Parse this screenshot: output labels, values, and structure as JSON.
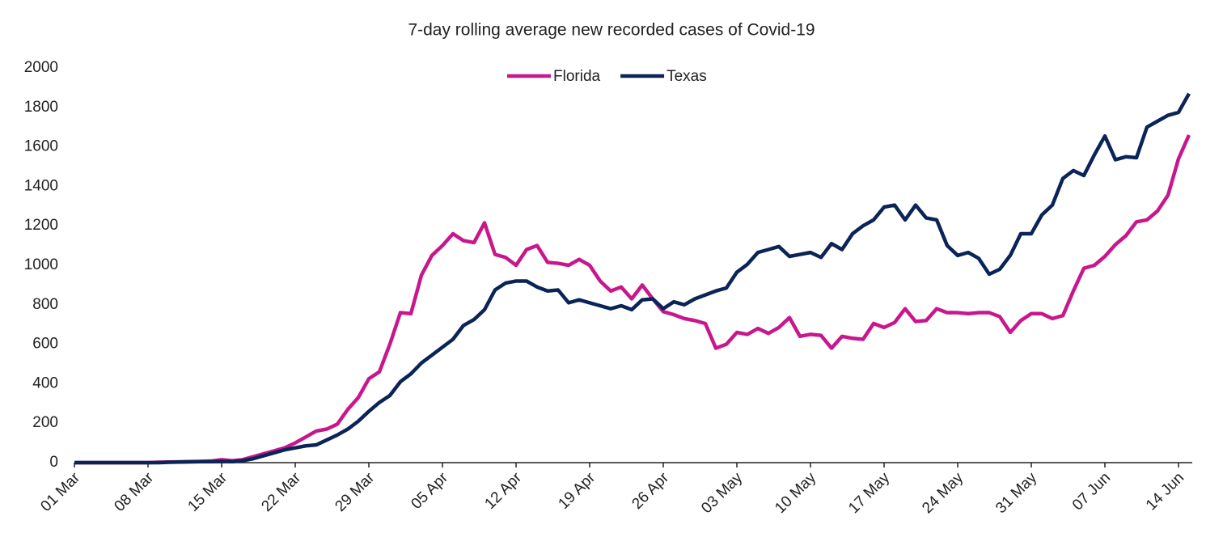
{
  "chart_data": {
    "type": "line",
    "title": "7-day rolling average new recorded cases of Covid-19",
    "categories": [
      "01 Mar",
      null,
      null,
      null,
      null,
      null,
      null,
      "08 Mar",
      null,
      null,
      null,
      null,
      null,
      null,
      "15 Mar",
      null,
      null,
      null,
      null,
      null,
      null,
      "22 Mar",
      null,
      null,
      null,
      null,
      null,
      null,
      "29 Mar",
      null,
      null,
      null,
      null,
      null,
      null,
      "05 Apr",
      null,
      null,
      null,
      null,
      null,
      null,
      "12 Apr",
      null,
      null,
      null,
      null,
      null,
      null,
      "19 Apr",
      null,
      null,
      null,
      null,
      null,
      null,
      "26 Apr",
      null,
      null,
      null,
      null,
      null,
      null,
      "03 May",
      null,
      null,
      null,
      null,
      null,
      null,
      "10 May",
      null,
      null,
      null,
      null,
      null,
      null,
      "17 May",
      null,
      null,
      null,
      null,
      null,
      null,
      "24 May",
      null,
      null,
      null,
      null,
      null,
      null,
      "31 May",
      null,
      null,
      null,
      null,
      null,
      null,
      "07 Jun",
      null,
      null,
      null,
      null,
      null,
      null,
      "14 Jun",
      null
    ],
    "series": [
      {
        "name": "Florida",
        "color": "#c8178c",
        "values": [
          0,
          0,
          0,
          0,
          0,
          0,
          0,
          0,
          2,
          3,
          4,
          5,
          6,
          8,
          15,
          10,
          15,
          30,
          45,
          60,
          75,
          100,
          130,
          160,
          170,
          195,
          270,
          330,
          425,
          460,
          600,
          760,
          755,
          950,
          1050,
          1100,
          1160,
          1125,
          1115,
          1215,
          1055,
          1040,
          1000,
          1080,
          1100,
          1015,
          1010,
          1000,
          1030,
          1000,
          920,
          870,
          890,
          830,
          900,
          830,
          765,
          750,
          730,
          720,
          705,
          580,
          600,
          660,
          650,
          680,
          655,
          685,
          735,
          640,
          650,
          645,
          580,
          640,
          630,
          625,
          705,
          685,
          710,
          780,
          715,
          720,
          780,
          760,
          760,
          755,
          760,
          760,
          740,
          660,
          720,
          755,
          755,
          730,
          745,
          870,
          985,
          1000,
          1045,
          1105,
          1150,
          1220,
          1230,
          1275,
          1355,
          1540,
          1660
        ]
      },
      {
        "name": "Texas",
        "color": "#0b2457",
        "values": [
          0,
          0,
          0,
          0,
          0,
          0,
          0,
          0,
          0,
          2,
          3,
          4,
          5,
          5,
          6,
          5,
          10,
          20,
          35,
          50,
          65,
          75,
          85,
          90,
          115,
          140,
          170,
          210,
          260,
          305,
          340,
          410,
          450,
          505,
          545,
          585,
          625,
          695,
          725,
          775,
          875,
          910,
          920,
          920,
          890,
          870,
          875,
          810,
          825,
          810,
          795,
          780,
          795,
          775,
          825,
          830,
          780,
          815,
          800,
          830,
          850,
          870,
          885,
          965,
          1005,
          1065,
          1080,
          1095,
          1045,
          1055,
          1065,
          1040,
          1110,
          1080,
          1160,
          1200,
          1230,
          1295,
          1305,
          1230,
          1305,
          1240,
          1230,
          1100,
          1050,
          1065,
          1035,
          955,
          980,
          1050,
          1160,
          1160,
          1255,
          1305,
          1440,
          1480,
          1455,
          1560,
          1655,
          1535,
          1550,
          1545,
          1700,
          1730,
          1760,
          1775,
          1870
        ]
      }
    ],
    "ylim": [
      0,
      2000
    ],
    "yticks": [
      0,
      200,
      400,
      600,
      800,
      1000,
      1200,
      1400,
      1600,
      1800,
      2000
    ],
    "grid": false,
    "legend": "top"
  }
}
